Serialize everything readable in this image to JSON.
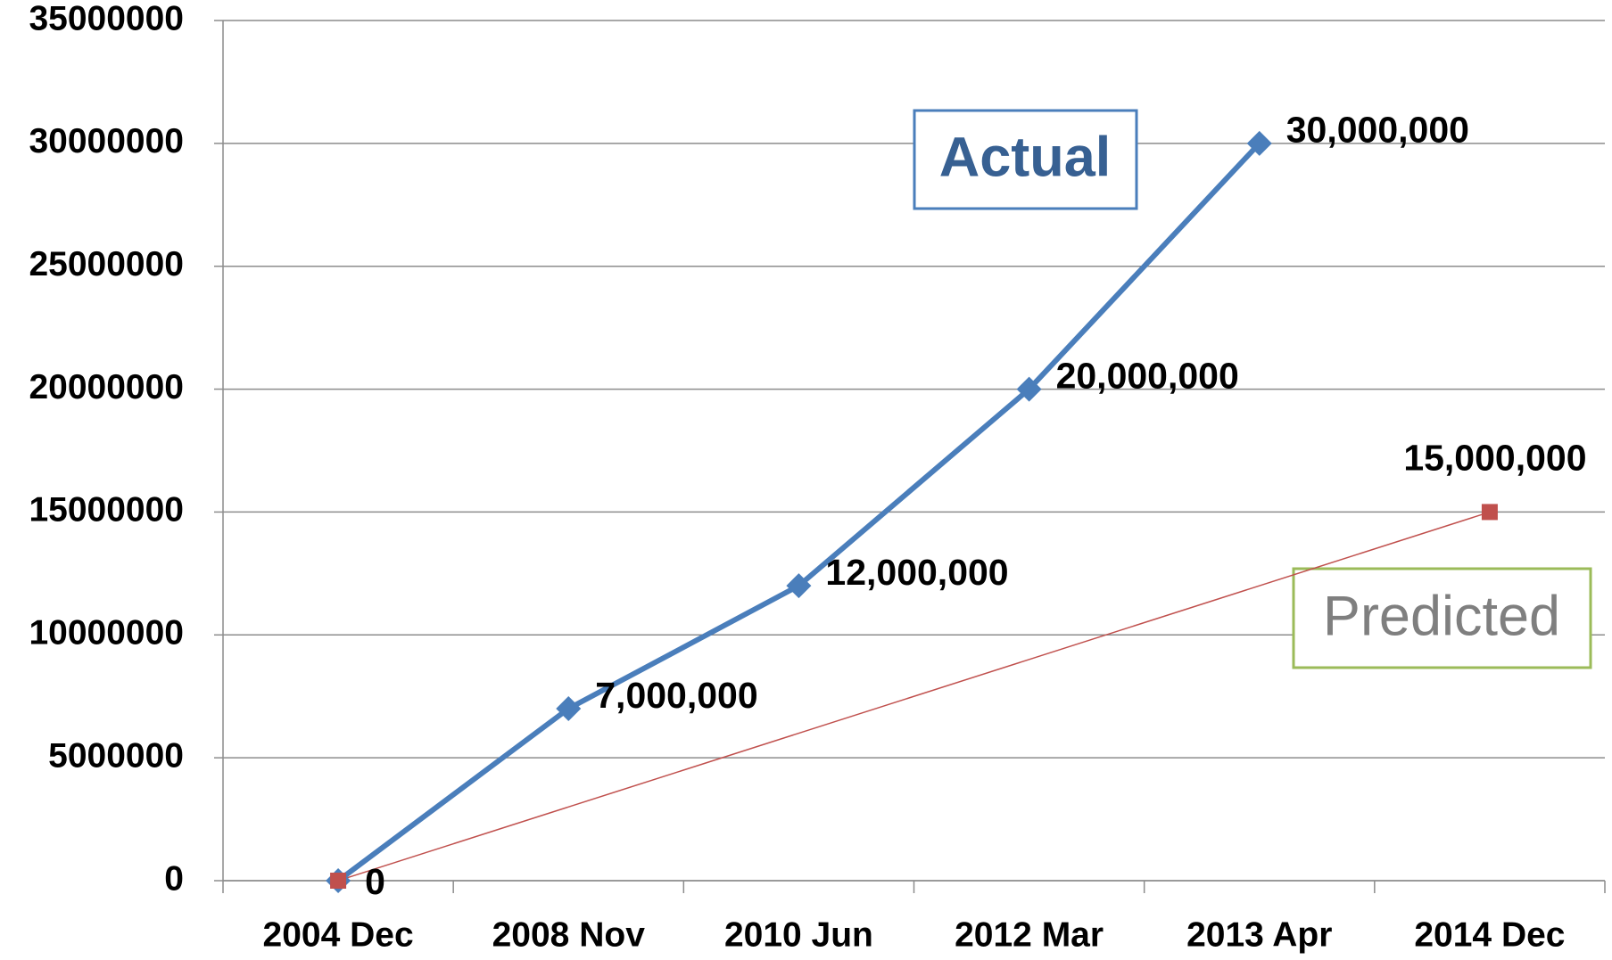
{
  "chart_data": {
    "type": "line",
    "categories": [
      "2004 Dec",
      "2008 Nov",
      "2010 Jun",
      "2012 Mar",
      "2013 Apr",
      "2014 Dec"
    ],
    "series": [
      {
        "name": "Actual",
        "color": "#4a7ebb",
        "marker": "diamond",
        "values": [
          0,
          7000000,
          12000000,
          20000000,
          30000000,
          null
        ],
        "value_labels": [
          "0",
          "7,000,000",
          "12,000,000",
          "20,000,000",
          "30,000,000",
          null
        ]
      },
      {
        "name": "Predicted",
        "color": "#c0504d",
        "marker": "square",
        "values": [
          0,
          null,
          null,
          null,
          null,
          15000000
        ],
        "value_labels": [
          null,
          null,
          null,
          null,
          null,
          "15,000,000"
        ]
      }
    ],
    "connect_gaps": true,
    "ylim": [
      0,
      35000000
    ],
    "yticks": [
      0,
      5000000,
      10000000,
      15000000,
      20000000,
      25000000,
      30000000,
      35000000
    ],
    "grid": true
  }
}
